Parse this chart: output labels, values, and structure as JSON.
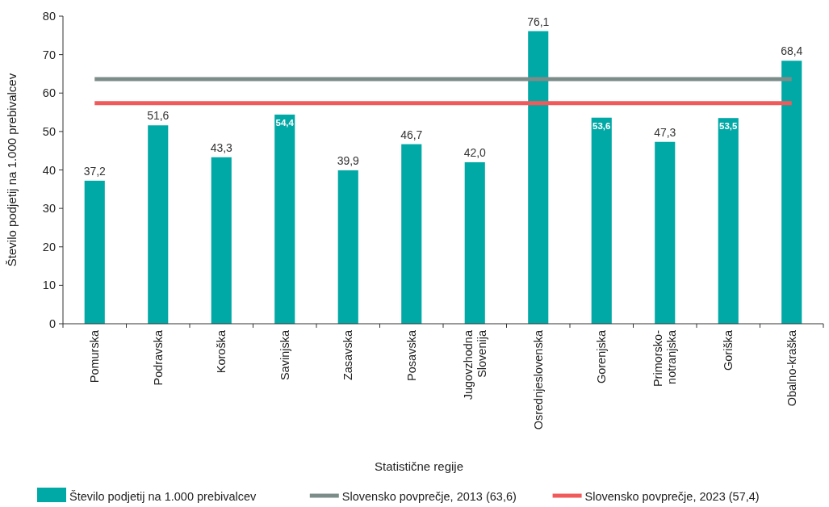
{
  "chart_data": {
    "type": "bar",
    "xlabel": "Statistične regije",
    "ylabel": "Število podjetij na 1.000 prebivalcev",
    "categories": [
      "Pomurska",
      "Podravska",
      "Koroška",
      "Savinjska",
      "Zasavska",
      "Posavska",
      "Jugovzhodna Slovenija",
      "Osrednjeslovenska",
      "Gorenjska",
      "Primorsko-notranjska",
      "Goriška",
      "Obalno-kraška"
    ],
    "series": [
      {
        "name": "Število podjetij na 1.000 prebivalcev",
        "color": "#00a8a6",
        "values": [
          37.2,
          51.6,
          43.3,
          54.4,
          39.9,
          46.7,
          42.0,
          76.1,
          53.6,
          47.3,
          53.5,
          68.4
        ],
        "value_labels": [
          "37,2",
          "51,6",
          "43,3",
          "54,4",
          "39,9",
          "46,7",
          "42,0",
          "76,1",
          "53,6",
          "47,3",
          "53,5",
          "68,4"
        ]
      },
      {
        "name": "Slovensko povprečje, 2013 (63,6)",
        "type": "line",
        "color": "#7c8c89",
        "values": [
          63.6,
          63.6,
          63.6,
          63.6,
          63.6,
          63.6,
          63.6,
          63.6,
          63.6,
          63.6,
          63.6,
          63.6
        ]
      },
      {
        "name": "Slovensko povprečje, 2023 (57,4)",
        "type": "line",
        "color": "#f15a5a",
        "values": [
          57.4,
          57.4,
          57.4,
          57.4,
          57.4,
          57.4,
          57.4,
          57.4,
          57.4,
          57.4,
          57.4,
          57.4
        ]
      }
    ],
    "ylim": [
      0,
      80
    ],
    "yticks": [
      0,
      10,
      20,
      30,
      40,
      50,
      60,
      70,
      80
    ],
    "grid": false,
    "legend": "bottom"
  }
}
